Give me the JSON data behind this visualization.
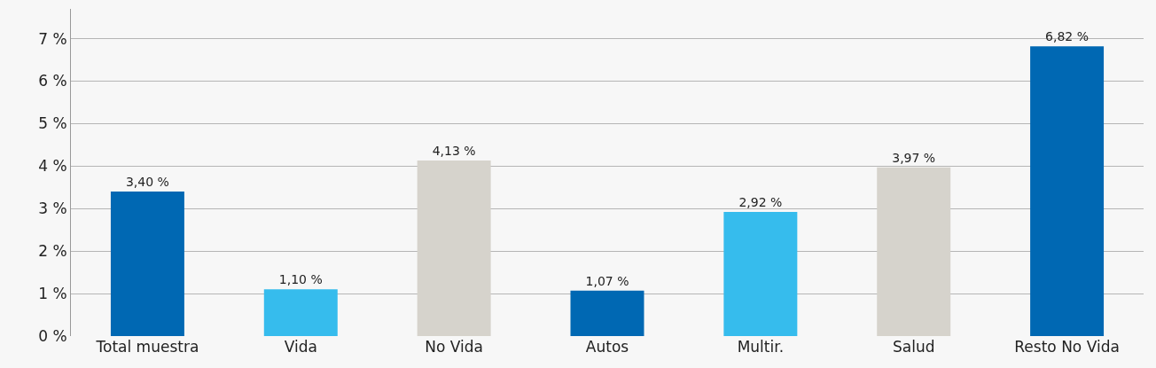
{
  "chart_data": {
    "type": "bar",
    "categories": [
      "Total muestra",
      "Vida",
      "No Vida",
      "Autos",
      "Multir.",
      "Salud",
      "Resto No Vida"
    ],
    "values": [
      3.4,
      1.1,
      4.13,
      1.07,
      2.92,
      3.97,
      6.82
    ],
    "colors": [
      "#0068b3",
      "#36bced",
      "#d6d3cc",
      "#0068b3",
      "#36bced",
      "#d6d3cc",
      "#0068b3"
    ],
    "value_labels": [
      "3,40 %",
      "1,10 %",
      "4,13 %",
      "1,07 %",
      "2,92 %",
      "3,97 %",
      "6,82 %"
    ],
    "ylim": [
      0,
      7.7
    ],
    "yticks": [
      {
        "value": 0,
        "label": "0 %"
      },
      {
        "value": 1,
        "label": "1 %"
      },
      {
        "value": 2,
        "label": "2 %"
      },
      {
        "value": 3,
        "label": "3 %"
      },
      {
        "value": 4,
        "label": "4 %"
      },
      {
        "value": 5,
        "label": "5 %"
      },
      {
        "value": 6,
        "label": "6 %"
      },
      {
        "value": 7,
        "label": "7 %"
      }
    ],
    "grid": "y"
  }
}
